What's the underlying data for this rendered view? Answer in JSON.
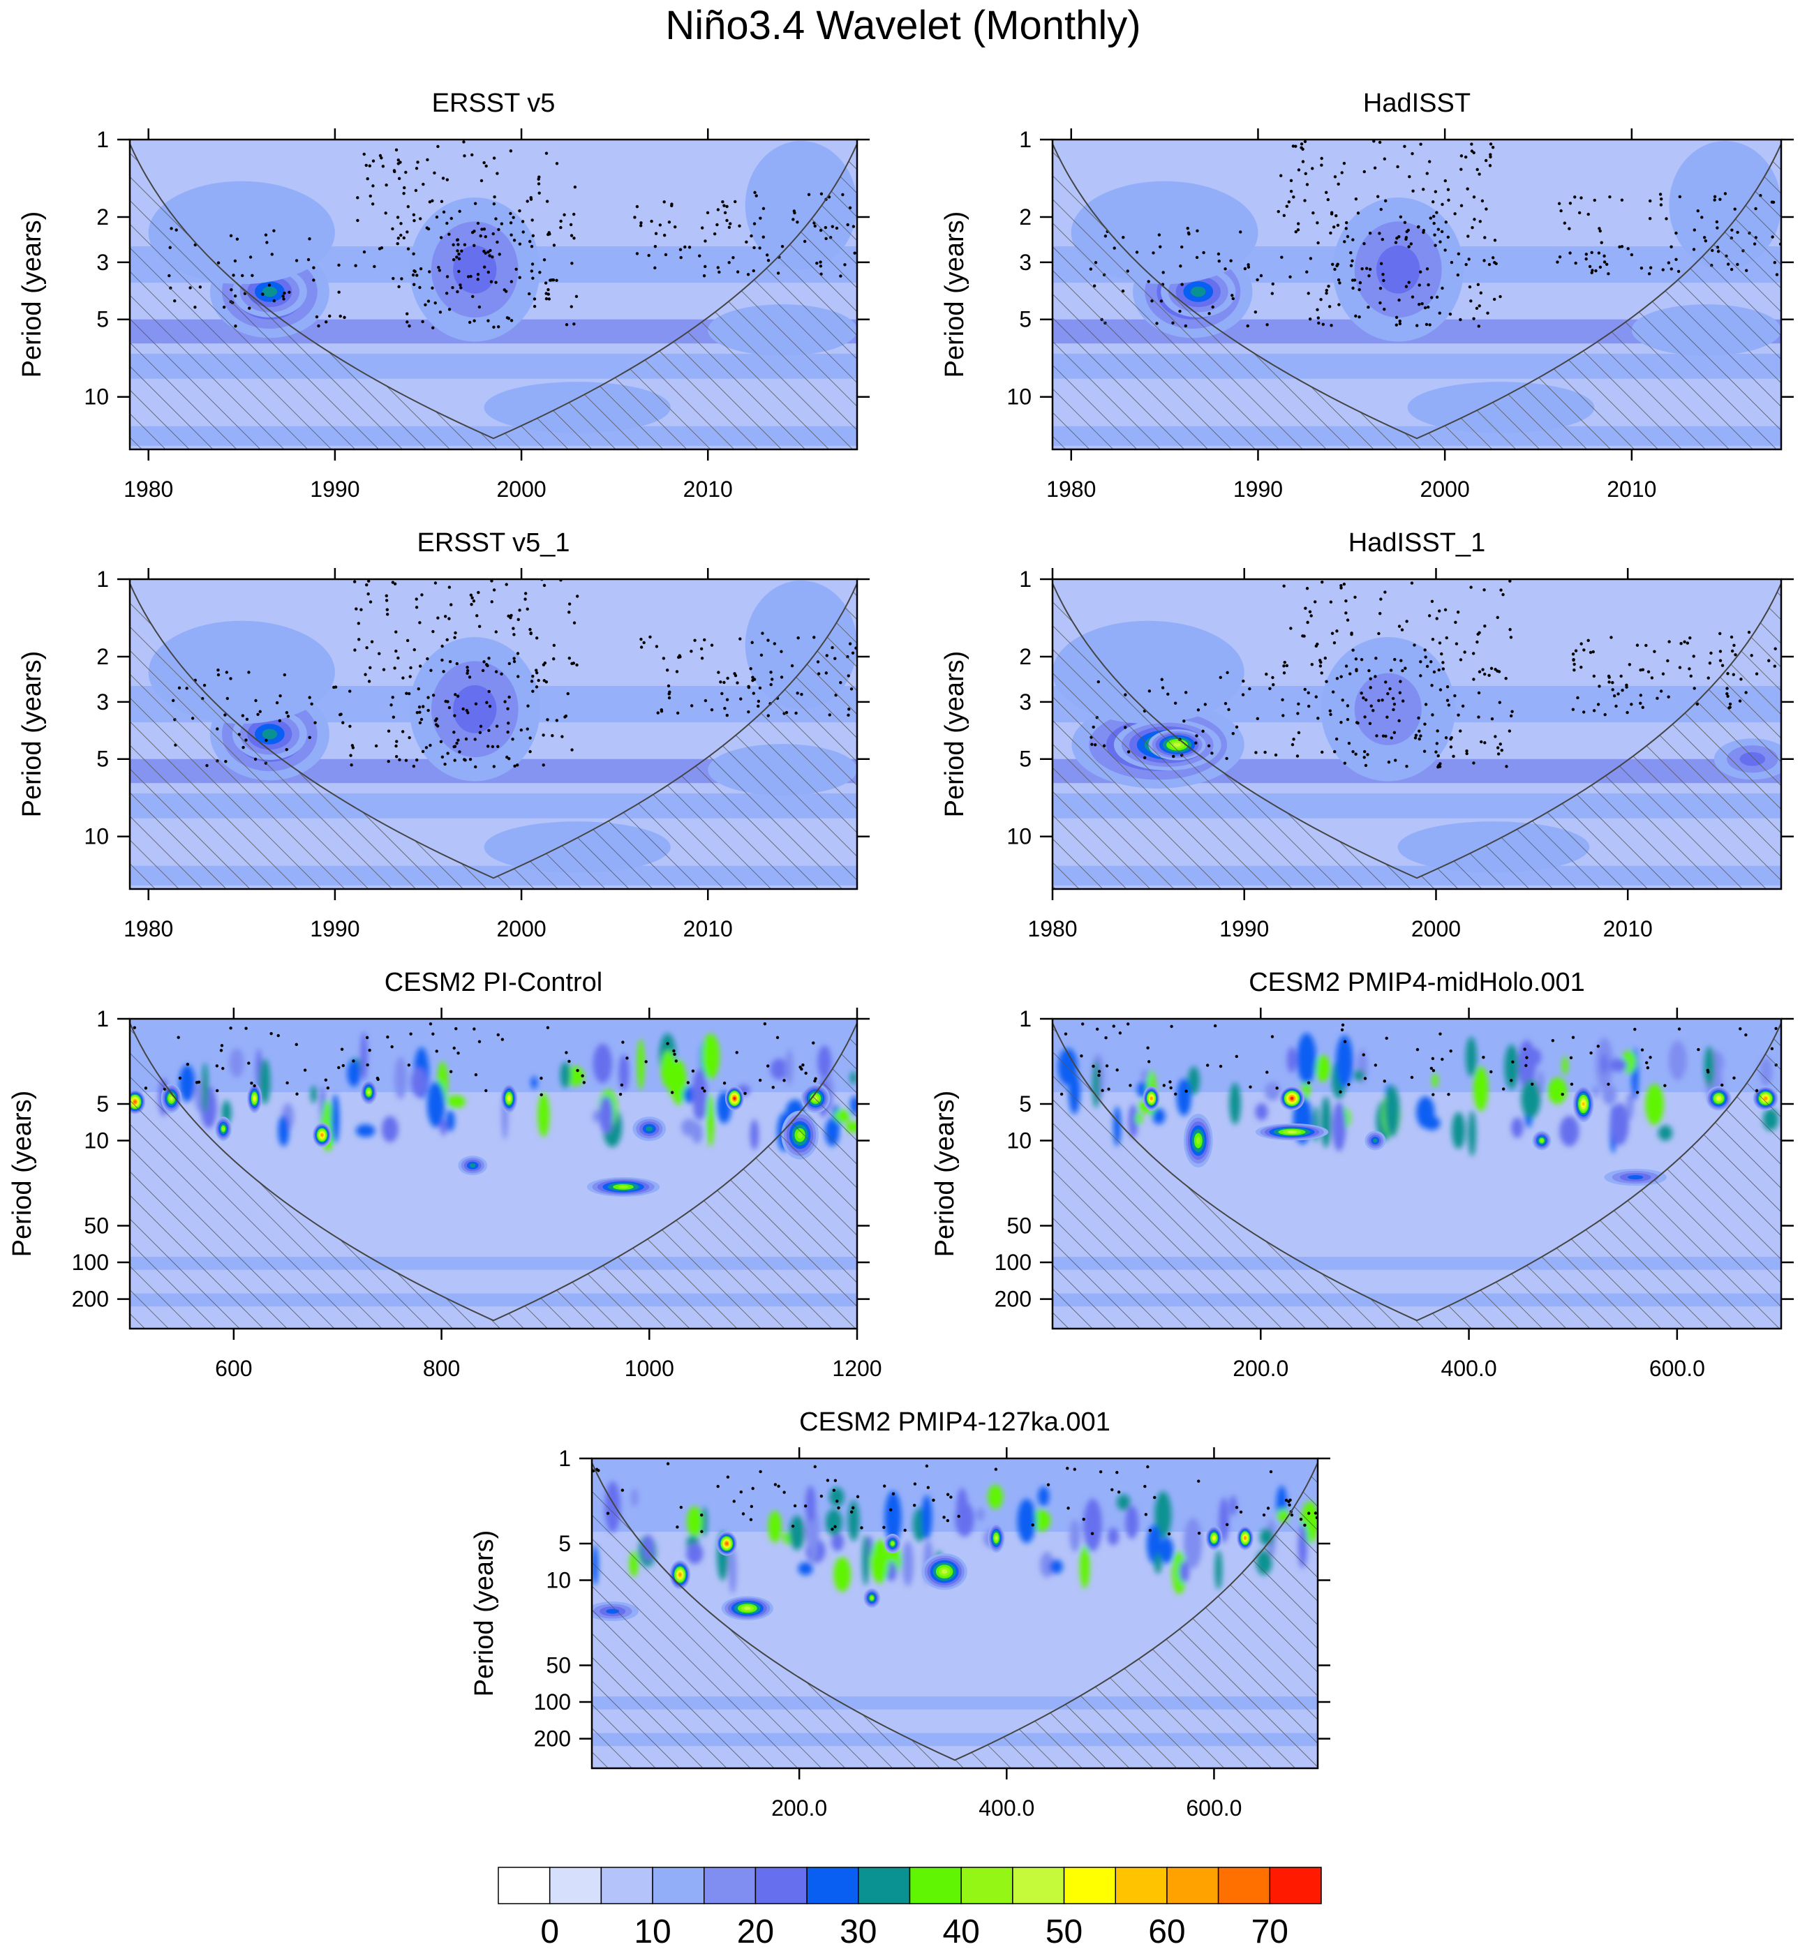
{
  "title": "Niño3.4 Wavelet (Monthly)",
  "chart_data": [
    {
      "type": "heatmap",
      "title": "ERSST v5",
      "ylabel": "Period (years)",
      "xlim": [
        1979,
        2018
      ],
      "xticks": [
        {
          "value": 1980,
          "label": "1980"
        },
        {
          "value": 1990,
          "label": "1990"
        },
        {
          "value": 2000,
          "label": "2000"
        },
        {
          "value": 2010,
          "label": "2010"
        }
      ],
      "ylim": [
        1,
        16
      ],
      "yticks": [
        {
          "value": 1,
          "label": "1"
        },
        {
          "value": 2,
          "label": "2"
        },
        {
          "value": 3,
          "label": "3"
        },
        {
          "value": 5,
          "label": "5"
        },
        {
          "value": 10,
          "label": "10"
        }
      ],
      "blobs": [
        {
          "x": 1986.5,
          "p": 3.9,
          "rx": 3.2,
          "ry": 0.18,
          "v": 30
        },
        {
          "x": 1986.5,
          "p": 3.9,
          "rx": 2.0,
          "ry": 0.1,
          "v": 33
        },
        {
          "x": 1997.5,
          "p": 3.2,
          "rx": 3.5,
          "ry": 0.28,
          "v": 22
        },
        {
          "x": 1985.0,
          "p": 2.3,
          "rx": 5.0,
          "ry": 0.2,
          "v": 12
        },
        {
          "x": 2015.0,
          "p": 1.8,
          "rx": 3.0,
          "ry": 0.25,
          "v": 10
        },
        {
          "x": 2003.0,
          "p": 11.0,
          "rx": 5.0,
          "ry": 0.1,
          "v": 12
        },
        {
          "x": 2014.0,
          "p": 5.5,
          "rx": 4.0,
          "ry": 0.1,
          "v": 12
        }
      ]
    },
    {
      "type": "heatmap",
      "title": "HadISST",
      "ylabel": "Period (years)",
      "xlim": [
        1979,
        2018
      ],
      "xticks": [
        {
          "value": 1980,
          "label": "1980"
        },
        {
          "value": 1990,
          "label": "1990"
        },
        {
          "value": 2000,
          "label": "2000"
        },
        {
          "value": 2010,
          "label": "2010"
        }
      ],
      "ylim": [
        1,
        16
      ],
      "yticks": [
        {
          "value": 1,
          "label": "1"
        },
        {
          "value": 2,
          "label": "2"
        },
        {
          "value": 3,
          "label": "3"
        },
        {
          "value": 5,
          "label": "5"
        },
        {
          "value": 10,
          "label": "10"
        }
      ],
      "blobs": [
        {
          "x": 1986.5,
          "p": 3.9,
          "rx": 3.2,
          "ry": 0.18,
          "v": 30
        },
        {
          "x": 1986.8,
          "p": 3.9,
          "rx": 2.0,
          "ry": 0.1,
          "v": 34
        },
        {
          "x": 1997.5,
          "p": 3.2,
          "rx": 3.5,
          "ry": 0.28,
          "v": 20
        },
        {
          "x": 1985.0,
          "p": 2.3,
          "rx": 5.0,
          "ry": 0.2,
          "v": 12
        },
        {
          "x": 2015.0,
          "p": 1.8,
          "rx": 3.0,
          "ry": 0.25,
          "v": 10
        },
        {
          "x": 2003.0,
          "p": 11.0,
          "rx": 5.0,
          "ry": 0.1,
          "v": 12
        },
        {
          "x": 2014.0,
          "p": 5.5,
          "rx": 4.0,
          "ry": 0.1,
          "v": 12
        }
      ]
    },
    {
      "type": "heatmap",
      "title": "ERSST v5_1",
      "ylabel": "Period (years)",
      "xlim": [
        1979,
        2018
      ],
      "xticks": [
        {
          "value": 1980,
          "label": "1980"
        },
        {
          "value": 1990,
          "label": "1990"
        },
        {
          "value": 2000,
          "label": "2000"
        },
        {
          "value": 2010,
          "label": "2010"
        }
      ],
      "ylim": [
        1,
        16
      ],
      "yticks": [
        {
          "value": 1,
          "label": "1"
        },
        {
          "value": 2,
          "label": "2"
        },
        {
          "value": 3,
          "label": "3"
        },
        {
          "value": 5,
          "label": "5"
        },
        {
          "value": 10,
          "label": "10"
        }
      ],
      "blobs": [
        {
          "x": 1986.5,
          "p": 4.0,
          "rx": 3.2,
          "ry": 0.18,
          "v": 30
        },
        {
          "x": 1986.5,
          "p": 4.0,
          "rx": 2.0,
          "ry": 0.1,
          "v": 33
        },
        {
          "x": 1997.5,
          "p": 3.2,
          "rx": 3.5,
          "ry": 0.28,
          "v": 22
        },
        {
          "x": 1985.0,
          "p": 2.3,
          "rx": 5.0,
          "ry": 0.2,
          "v": 12
        },
        {
          "x": 2015.0,
          "p": 1.8,
          "rx": 3.0,
          "ry": 0.25,
          "v": 10
        },
        {
          "x": 2003.0,
          "p": 11.0,
          "rx": 5.0,
          "ry": 0.1,
          "v": 12
        },
        {
          "x": 2014.0,
          "p": 5.5,
          "rx": 4.0,
          "ry": 0.1,
          "v": 12
        }
      ]
    },
    {
      "type": "heatmap",
      "title": "HadISST_1",
      "ylabel": "Period (years)",
      "xlim": [
        1980,
        2018
      ],
      "xticks": [
        {
          "value": 1980,
          "label": "1980"
        },
        {
          "value": 1990,
          "label": "1990"
        },
        {
          "value": 2000,
          "label": "2000"
        },
        {
          "value": 2010,
          "label": "2010"
        }
      ],
      "ylim": [
        1,
        16
      ],
      "yticks": [
        {
          "value": 1,
          "label": "1"
        },
        {
          "value": 2,
          "label": "2"
        },
        {
          "value": 3,
          "label": "3"
        },
        {
          "value": 5,
          "label": "5"
        },
        {
          "value": 10,
          "label": "10"
        }
      ],
      "blobs": [
        {
          "x": 1985.5,
          "p": 4.4,
          "rx": 4.5,
          "ry": 0.17,
          "v": 32
        },
        {
          "x": 1986.0,
          "p": 4.4,
          "rx": 2.8,
          "ry": 0.1,
          "v": 42
        },
        {
          "x": 1986.5,
          "p": 4.4,
          "rx": 1.5,
          "ry": 0.06,
          "v": 48
        },
        {
          "x": 1997.5,
          "p": 3.2,
          "rx": 3.5,
          "ry": 0.28,
          "v": 18
        },
        {
          "x": 1985.0,
          "p": 2.3,
          "rx": 5.0,
          "ry": 0.2,
          "v": 12
        },
        {
          "x": 2016.5,
          "p": 5.0,
          "rx": 2.0,
          "ry": 0.08,
          "v": 24
        },
        {
          "x": 2003.0,
          "p": 11.0,
          "rx": 5.0,
          "ry": 0.1,
          "v": 12
        }
      ]
    },
    {
      "type": "heatmap",
      "title": "CESM2 PI-Control",
      "ylabel": "Period (years)",
      "xlim": [
        500,
        1200
      ],
      "xticks": [
        {
          "value": 600,
          "label": "600"
        },
        {
          "value": 800,
          "label": "800"
        },
        {
          "value": 1000,
          "label": "1000"
        },
        {
          "value": 1200,
          "label": "1200"
        }
      ],
      "ylim": [
        1,
        350
      ],
      "yticks": [
        {
          "value": 1,
          "label": "1"
        },
        {
          "value": 5,
          "label": "5"
        },
        {
          "value": 10,
          "label": "10"
        },
        {
          "value": 50,
          "label": "50"
        },
        {
          "value": 100,
          "label": "100"
        },
        {
          "value": 200,
          "label": "200"
        }
      ],
      "blobs": [
        {
          "x": 505,
          "p": 4.8,
          "rx": 10,
          "ry": 0.1,
          "v": 68
        },
        {
          "x": 540,
          "p": 4.5,
          "rx": 10,
          "ry": 0.12,
          "v": 48
        },
        {
          "x": 590,
          "p": 8.0,
          "rx": 8,
          "ry": 0.1,
          "v": 42
        },
        {
          "x": 620,
          "p": 4.5,
          "rx": 7,
          "ry": 0.12,
          "v": 52
        },
        {
          "x": 685,
          "p": 9.0,
          "rx": 9,
          "ry": 0.1,
          "v": 62
        },
        {
          "x": 730,
          "p": 4.0,
          "rx": 8,
          "ry": 0.1,
          "v": 46
        },
        {
          "x": 830,
          "p": 16.0,
          "rx": 14,
          "ry": 0.08,
          "v": 32
        },
        {
          "x": 865,
          "p": 4.5,
          "rx": 8,
          "ry": 0.12,
          "v": 50
        },
        {
          "x": 975,
          "p": 24.0,
          "rx": 35,
          "ry": 0.08,
          "v": 44
        },
        {
          "x": 1000,
          "p": 8.0,
          "rx": 16,
          "ry": 0.1,
          "v": 30
        },
        {
          "x": 1082,
          "p": 4.5,
          "rx": 9,
          "ry": 0.1,
          "v": 70
        },
        {
          "x": 1145,
          "p": 9.0,
          "rx": 18,
          "ry": 0.2,
          "v": 44
        },
        {
          "x": 1160,
          "p": 4.5,
          "rx": 14,
          "ry": 0.12,
          "v": 48
        }
      ]
    },
    {
      "type": "heatmap",
      "title": "CESM2 PMIP4-midHolo.001",
      "ylabel": "Period (years)",
      "xlim": [
        0,
        700
      ],
      "xticks": [
        {
          "value": 200,
          "label": "200.0"
        },
        {
          "value": 400,
          "label": "400.0"
        },
        {
          "value": 600,
          "label": "600.0"
        }
      ],
      "ylim": [
        1,
        350
      ],
      "yticks": [
        {
          "value": 1,
          "label": "1"
        },
        {
          "value": 5,
          "label": "5"
        },
        {
          "value": 10,
          "label": "10"
        },
        {
          "value": 50,
          "label": "50"
        },
        {
          "value": 100,
          "label": "100"
        },
        {
          "value": 200,
          "label": "200"
        }
      ],
      "blobs": [
        {
          "x": 95,
          "p": 4.5,
          "rx": 8,
          "ry": 0.1,
          "v": 64
        },
        {
          "x": 140,
          "p": 10.0,
          "rx": 14,
          "ry": 0.22,
          "v": 44
        },
        {
          "x": 230,
          "p": 4.5,
          "rx": 12,
          "ry": 0.1,
          "v": 70
        },
        {
          "x": 230,
          "p": 8.5,
          "rx": 35,
          "ry": 0.07,
          "v": 46
        },
        {
          "x": 310,
          "p": 10.0,
          "rx": 10,
          "ry": 0.08,
          "v": 32
        },
        {
          "x": 470,
          "p": 10.0,
          "rx": 9,
          "ry": 0.08,
          "v": 44
        },
        {
          "x": 510,
          "p": 5.0,
          "rx": 10,
          "ry": 0.15,
          "v": 58
        },
        {
          "x": 640,
          "p": 4.5,
          "rx": 12,
          "ry": 0.1,
          "v": 54
        },
        {
          "x": 685,
          "p": 4.5,
          "rx": 12,
          "ry": 0.1,
          "v": 62
        },
        {
          "x": 560,
          "p": 20.0,
          "rx": 30,
          "ry": 0.07,
          "v": 26
        }
      ]
    },
    {
      "type": "heatmap",
      "title": "CESM2 PMIP4-127ka.001",
      "ylabel": "Period (years)",
      "xlim": [
        0,
        700
      ],
      "xticks": [
        {
          "value": 200,
          "label": "200.0"
        },
        {
          "value": 400,
          "label": "400.0"
        },
        {
          "value": 600,
          "label": "600.0"
        }
      ],
      "ylim": [
        1,
        350
      ],
      "yticks": [
        {
          "value": 1,
          "label": "1"
        },
        {
          "value": 5,
          "label": "5"
        },
        {
          "value": 10,
          "label": "10"
        },
        {
          "value": 50,
          "label": "50"
        },
        {
          "value": 100,
          "label": "100"
        },
        {
          "value": 200,
          "label": "200"
        }
      ],
      "blobs": [
        {
          "x": 85,
          "p": 9.0,
          "rx": 10,
          "ry": 0.12,
          "v": 64
        },
        {
          "x": 130,
          "p": 5.0,
          "rx": 10,
          "ry": 0.1,
          "v": 66
        },
        {
          "x": 150,
          "p": 17.0,
          "rx": 25,
          "ry": 0.1,
          "v": 46
        },
        {
          "x": 270,
          "p": 14.0,
          "rx": 8,
          "ry": 0.08,
          "v": 40
        },
        {
          "x": 290,
          "p": 5.0,
          "rx": 8,
          "ry": 0.08,
          "v": 44
        },
        {
          "x": 340,
          "p": 8.5,
          "rx": 22,
          "ry": 0.15,
          "v": 48
        },
        {
          "x": 390,
          "p": 4.5,
          "rx": 8,
          "ry": 0.12,
          "v": 48
        },
        {
          "x": 600,
          "p": 4.5,
          "rx": 8,
          "ry": 0.1,
          "v": 50
        },
        {
          "x": 630,
          "p": 4.5,
          "rx": 8,
          "ry": 0.1,
          "v": 62
        },
        {
          "x": 20,
          "p": 18.0,
          "rx": 25,
          "ry": 0.08,
          "v": 26
        }
      ]
    }
  ],
  "colorbar": {
    "levels": [
      0,
      5,
      10,
      15,
      20,
      25,
      30,
      35,
      40,
      45,
      50,
      55,
      60,
      65,
      70
    ],
    "colors": [
      "#ffffff",
      "#d6dffb",
      "#b4c3f9",
      "#93aef9",
      "#7f8ef0",
      "#6670ee",
      "#0a5ff3",
      "#0a9292",
      "#5ff503",
      "#94f614",
      "#c5fa3a",
      "#ffff00",
      "#ffc300",
      "#ffa200",
      "#ff7000",
      "#ff1a00"
    ],
    "labels": [
      {
        "value": 0,
        "label": "0"
      },
      {
        "value": 10,
        "label": "10"
      },
      {
        "value": 20,
        "label": "20"
      },
      {
        "value": 30,
        "label": "30"
      },
      {
        "value": 40,
        "label": "40"
      },
      {
        "value": 50,
        "label": "50"
      },
      {
        "value": 60,
        "label": "60"
      },
      {
        "value": 70,
        "label": "70"
      }
    ]
  }
}
